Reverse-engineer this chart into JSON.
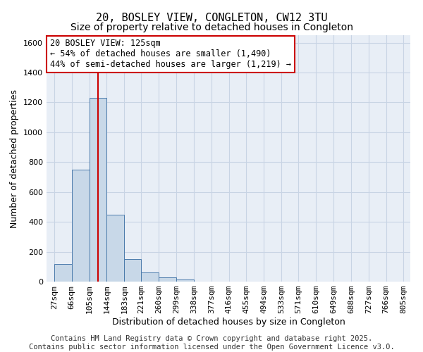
{
  "title": "20, BOSLEY VIEW, CONGLETON, CW12 3TU",
  "subtitle": "Size of property relative to detached houses in Congleton",
  "xlabel": "Distribution of detached houses by size in Congleton",
  "ylabel": "Number of detached properties",
  "footer1": "Contains HM Land Registry data © Crown copyright and database right 2025.",
  "footer2": "Contains public sector information licensed under the Open Government Licence v3.0.",
  "bar_left_edges": [
    27,
    66,
    105,
    144,
    183,
    221,
    260,
    299,
    338,
    377,
    416,
    455,
    494,
    533,
    571,
    610,
    649,
    688,
    727,
    766
  ],
  "bar_widths": [
    39,
    39,
    39,
    39,
    38,
    39,
    39,
    39,
    39,
    39,
    39,
    39,
    39,
    38,
    39,
    39,
    39,
    39,
    39,
    39
  ],
  "bar_heights": [
    120,
    750,
    1230,
    450,
    150,
    60,
    30,
    15,
    0,
    0,
    0,
    0,
    0,
    0,
    0,
    0,
    0,
    0,
    0,
    0
  ],
  "bar_color": "#c8d8e8",
  "bar_edge_color": "#4a7aab",
  "grid_color": "#c8d4e4",
  "bg_color": "#e8eef6",
  "red_line_x": 125,
  "red_line_color": "#cc0000",
  "ylim": [
    0,
    1650
  ],
  "yticks": [
    0,
    200,
    400,
    600,
    800,
    1000,
    1200,
    1400,
    1600
  ],
  "xtick_labels": [
    "27sqm",
    "66sqm",
    "105sqm",
    "144sqm",
    "183sqm",
    "221sqm",
    "260sqm",
    "299sqm",
    "338sqm",
    "377sqm",
    "416sqm",
    "455sqm",
    "494sqm",
    "533sqm",
    "571sqm",
    "610sqm",
    "649sqm",
    "688sqm",
    "727sqm",
    "766sqm",
    "805sqm"
  ],
  "xtick_positions": [
    27,
    66,
    105,
    144,
    183,
    221,
    260,
    299,
    338,
    377,
    416,
    455,
    494,
    533,
    571,
    610,
    649,
    688,
    727,
    766,
    805
  ],
  "annotation_line1": "20 BOSLEY VIEW: 125sqm",
  "annotation_line2": "← 54% of detached houses are smaller (1,490)",
  "annotation_line3": "44% of semi-detached houses are larger (1,219) →",
  "title_fontsize": 11,
  "subtitle_fontsize": 10,
  "axis_label_fontsize": 9,
  "tick_fontsize": 8,
  "annotation_fontsize": 8.5,
  "footer_fontsize": 7.5
}
